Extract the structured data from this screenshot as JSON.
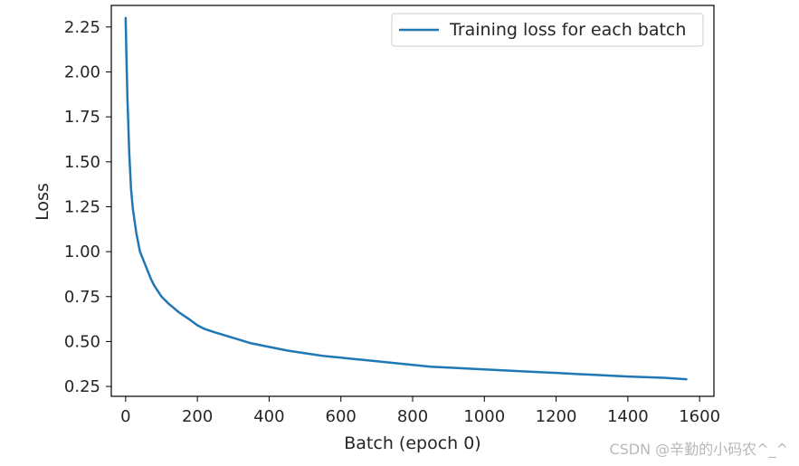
{
  "chart_data": {
    "type": "line",
    "title": "",
    "xlabel": "Batch (epoch 0)",
    "ylabel": "Loss",
    "xlim": [
      -40,
      1640
    ],
    "ylim": [
      0.195,
      2.37
    ],
    "xticks": [
      0,
      200,
      400,
      600,
      800,
      1000,
      1200,
      1400,
      1600
    ],
    "xtick_labels": [
      "0",
      "200",
      "400",
      "600",
      "800",
      "1000",
      "1200",
      "1400",
      "1600"
    ],
    "yticks": [
      0.25,
      0.5,
      0.75,
      1.0,
      1.25,
      1.5,
      1.75,
      2.0,
      2.25
    ],
    "ytick_labels": [
      "0.25",
      "0.50",
      "0.75",
      "1.00",
      "1.25",
      "1.50",
      "1.75",
      "2.00",
      "2.25"
    ],
    "grid": false,
    "legend": "top-right",
    "series": [
      {
        "name": "Training loss for each batch",
        "color": "#1f77b4",
        "x": [
          0,
          2,
          5,
          10,
          15,
          20,
          30,
          40,
          50,
          60,
          70,
          80,
          100,
          120,
          150,
          180,
          200,
          220,
          250,
          300,
          350,
          400,
          450,
          500,
          550,
          600,
          650,
          700,
          750,
          800,
          850,
          900,
          950,
          1000,
          1100,
          1200,
          1300,
          1400,
          1500,
          1563
        ],
        "values": [
          2.3,
          2.1,
          1.85,
          1.55,
          1.35,
          1.24,
          1.1,
          1.0,
          0.95,
          0.9,
          0.85,
          0.81,
          0.75,
          0.71,
          0.66,
          0.62,
          0.59,
          0.57,
          0.55,
          0.52,
          0.49,
          0.47,
          0.45,
          0.435,
          0.42,
          0.41,
          0.4,
          0.39,
          0.38,
          0.37,
          0.36,
          0.355,
          0.35,
          0.345,
          0.335,
          0.325,
          0.315,
          0.305,
          0.298,
          0.29
        ]
      }
    ]
  },
  "watermark": "CSDN @辛勤的小码农^_^"
}
